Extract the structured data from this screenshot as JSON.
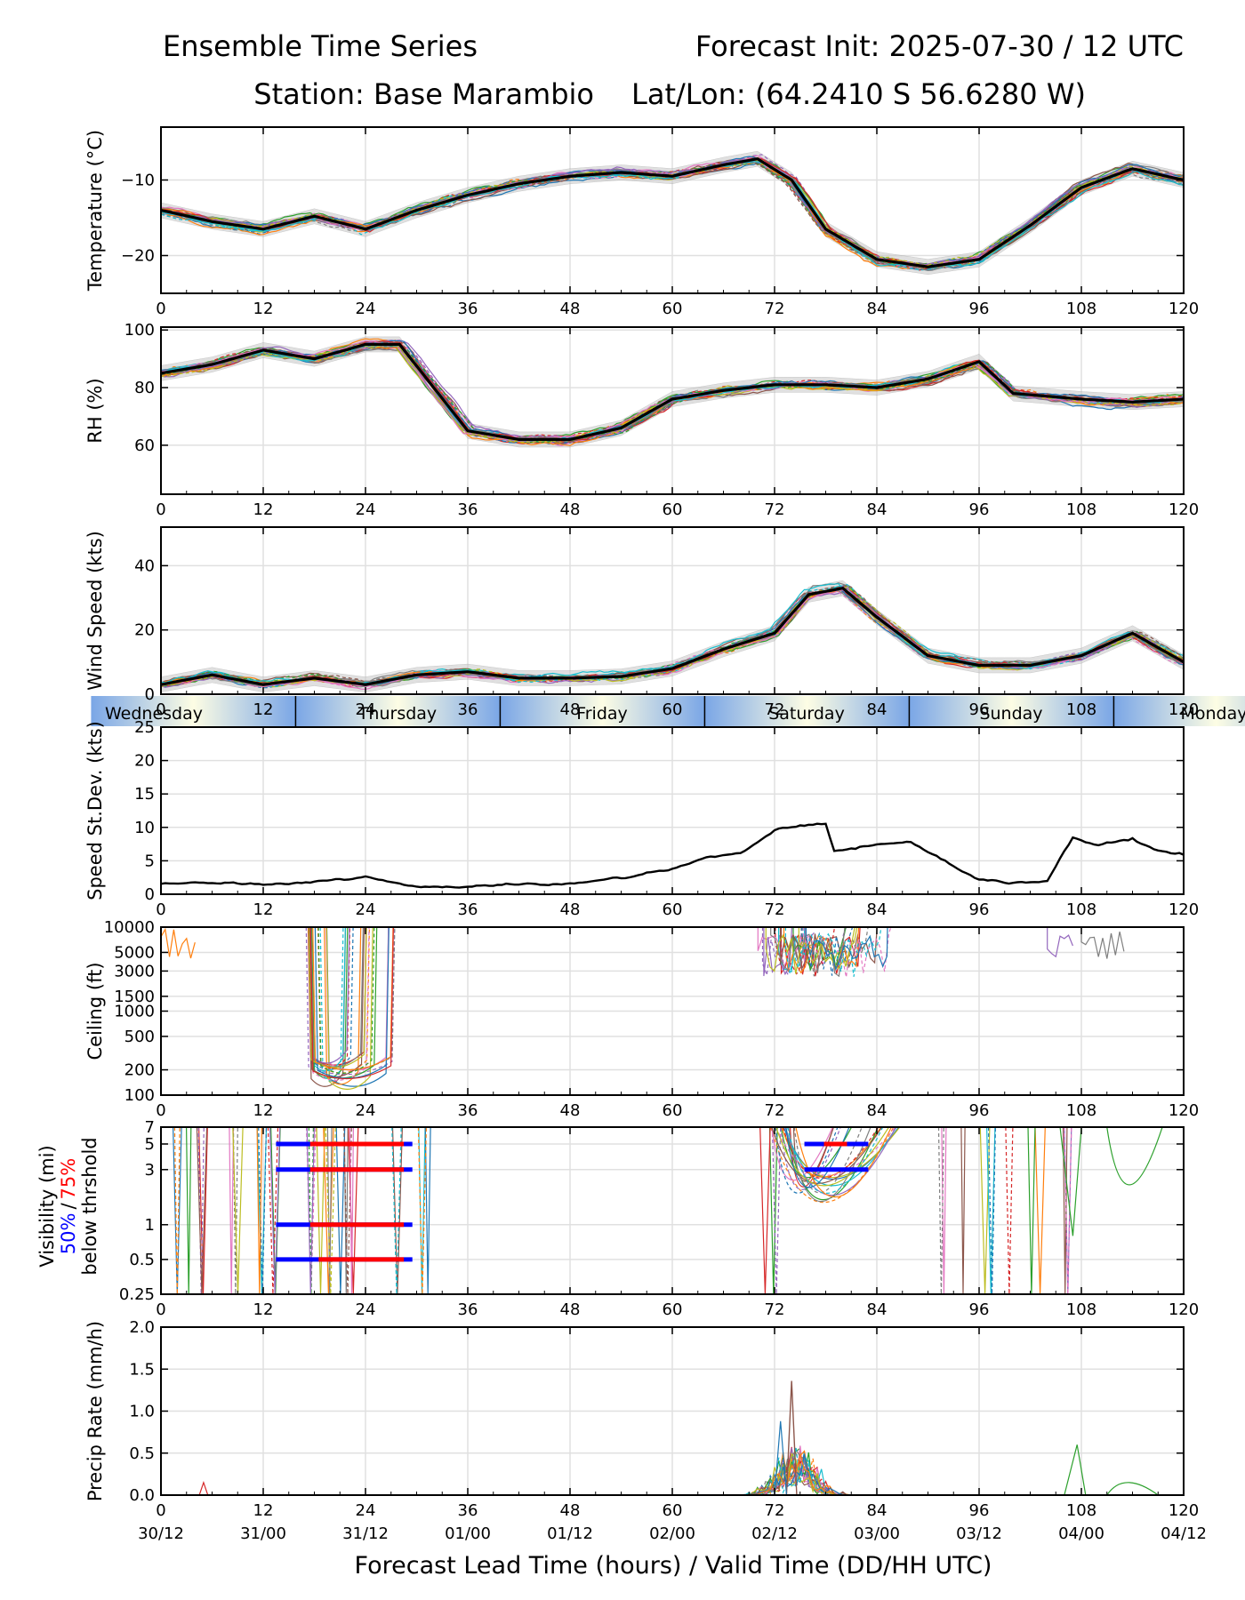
{
  "header": {
    "title_left": "Ensemble Time Series",
    "title_right": "Forecast Init: 2025-07-30 / 12 UTC",
    "station": "Station: Base Marambio",
    "latlon": "Lat/Lon: (64.2410 S 56.6280 W)"
  },
  "x_axis": {
    "ticks": [
      0,
      12,
      24,
      36,
      48,
      60,
      72,
      84,
      96,
      108,
      120
    ],
    "tick_labels": [
      "0",
      "12",
      "24",
      "36",
      "48",
      "60",
      "72",
      "84",
      "96",
      "108",
      "120"
    ],
    "valid_labels": [
      "30/12",
      "31/00",
      "31/12",
      "01/00",
      "01/12",
      "02/00",
      "02/12",
      "03/00",
      "03/12",
      "04/00",
      "04/12"
    ],
    "label": "Forecast Lead Time (hours) / Valid Time (DD/HH UTC)"
  },
  "day_band": {
    "days": [
      "Wednesday",
      "Thursday",
      "Friday",
      "Saturday",
      "Sunday",
      "Monday"
    ],
    "boundaries": [
      15.8,
      39.8,
      63.8,
      87.8,
      111.8
    ]
  },
  "colors": {
    "member_palette": [
      "#1f77b4",
      "#ff7f0e",
      "#2ca02c",
      "#d62728",
      "#9467bd",
      "#8c564b",
      "#e377c2",
      "#7f7f7f",
      "#bcbd22",
      "#17becf"
    ],
    "mean": "#000000",
    "spread_fill": "#c8c8c8",
    "vis_50": "#0000ff",
    "vis_75": "#ff0000",
    "band_blue": "#7aa6e6",
    "band_cream": "#fdfde4"
  },
  "chart_data": [
    {
      "type": "line",
      "name": "temperature",
      "ylabel": "Temperature (°C)",
      "ylim": [
        -25,
        -3
      ],
      "yticks": [
        -20,
        -10
      ],
      "ytick_labels": [
        "−20",
        "−10"
      ],
      "grid": true,
      "x": [
        0,
        6,
        12,
        18,
        24,
        30,
        36,
        42,
        48,
        54,
        60,
        66,
        70,
        74,
        78,
        84,
        90,
        96,
        102,
        108,
        114,
        120
      ],
      "mean": [
        -14,
        -15.5,
        -16.5,
        -14.8,
        -16.5,
        -14,
        -12,
        -10.5,
        -9.5,
        -9,
        -9.5,
        -8,
        -7.2,
        -10,
        -16.5,
        -20.5,
        -21.5,
        -20.5,
        -16,
        -11,
        -8.5,
        -10
      ]
    },
    {
      "type": "line",
      "name": "relative_humidity",
      "ylabel": "RH (%)",
      "ylim": [
        43,
        101
      ],
      "yticks": [
        60,
        80,
        100
      ],
      "ytick_labels": [
        "60",
        "80",
        "100"
      ],
      "grid": true,
      "x": [
        0,
        6,
        12,
        18,
        24,
        28,
        32,
        36,
        42,
        48,
        54,
        60,
        66,
        72,
        78,
        84,
        90,
        96,
        100,
        108,
        114,
        120
      ],
      "mean": [
        85,
        88,
        93,
        90,
        95,
        95,
        80,
        65,
        62,
        62,
        66,
        76,
        79,
        81,
        81,
        80,
        83,
        89,
        78,
        76,
        75,
        76
      ]
    },
    {
      "type": "line",
      "name": "wind_speed",
      "ylabel": "Wind Speed (kts)",
      "ylim": [
        0,
        52
      ],
      "yticks": [
        0,
        20,
        40
      ],
      "ytick_labels": [
        "0",
        "20",
        "40"
      ],
      "grid": true,
      "x": [
        0,
        6,
        12,
        18,
        24,
        30,
        36,
        42,
        48,
        54,
        60,
        66,
        72,
        76,
        80,
        84,
        90,
        96,
        102,
        108,
        114,
        120
      ],
      "mean": [
        3,
        6,
        3,
        5,
        3,
        6,
        7,
        5,
        5,
        5.5,
        8,
        14,
        19,
        31,
        33,
        24,
        12,
        9,
        9,
        12,
        19,
        10
      ]
    },
    {
      "type": "line",
      "name": "speed_stdev",
      "ylabel": "Speed St.Dev. (kts)",
      "ylim": [
        0,
        25
      ],
      "yticks": [
        0,
        5,
        10,
        15,
        20,
        25
      ],
      "ytick_labels": [
        "0",
        "5",
        "10",
        "15",
        "20",
        "25"
      ],
      "grid": true,
      "x": [
        0,
        6,
        12,
        18,
        24,
        30,
        36,
        42,
        48,
        54,
        60,
        64,
        68,
        72,
        76,
        78,
        79,
        84,
        88,
        92,
        96,
        100,
        104,
        107,
        110,
        114,
        117,
        120
      ],
      "values": [
        1.5,
        1.8,
        1.5,
        1.8,
        2.5,
        1.2,
        1.2,
        1.5,
        1.5,
        2.3,
        3.8,
        5.5,
        6.2,
        9.5,
        10.5,
        10.5,
        6.5,
        7.5,
        7.8,
        5,
        2.2,
        1.8,
        2,
        8.3,
        7.3,
        8.3,
        6.5,
        6
      ]
    },
    {
      "type": "line",
      "name": "ceiling",
      "ylabel": "Ceiling (ft)",
      "yscale": "log",
      "ylim": [
        100,
        10000
      ],
      "yticks": [
        100,
        200,
        500,
        1000,
        1500,
        3000,
        5000,
        10000
      ],
      "ytick_labels": [
        "100",
        "200",
        "500",
        "1000",
        "1500",
        "3000",
        "5000",
        "10000"
      ],
      "grid": true,
      "low_ceiling_hours": [
        17,
        27
      ],
      "min_ceiling_ft": 110
    },
    {
      "type": "line",
      "name": "visibility",
      "ylabel": "Visibility (mi)",
      "legend_50": "50%",
      "legend_sep": "/",
      "legend_75": "75%",
      "legend_rest": "below thrshold",
      "yscale": "log",
      "ylim": [
        0.25,
        7
      ],
      "yticks": [
        0.25,
        0.5,
        1,
        3,
        5,
        7
      ],
      "ytick_labels": [
        "0.25",
        "0.5",
        "1",
        "3",
        "5",
        "7"
      ],
      "grid": true,
      "threshold_bars": [
        {
          "level": 5,
          "start": 13.5,
          "end": 29.5,
          "p75_start": 17.5,
          "p75_end": 28.5
        },
        {
          "level": 3,
          "start": 13.5,
          "end": 29.5,
          "p75_start": 17.5,
          "p75_end": 28.5
        },
        {
          "level": 1,
          "start": 13.5,
          "end": 29.5,
          "p75_start": 17.5,
          "p75_end": 28.5
        },
        {
          "level": 0.5,
          "start": 13.5,
          "end": 29.5,
          "p75_start": 18.5,
          "p75_end": 28.5
        },
        {
          "level": 5,
          "start": 75.5,
          "end": 83,
          "p75_start": 77.8,
          "p75_end": 80.5
        },
        {
          "level": 3,
          "start": 75.5,
          "end": 83,
          "p75_start": null,
          "p75_end": null
        }
      ]
    },
    {
      "type": "line",
      "name": "precip_rate",
      "ylabel": "Precip Rate (mm/h)",
      "ylim": [
        0,
        2.0
      ],
      "yticks": [
        0,
        0.5,
        1.0,
        1.5,
        2.0
      ],
      "ytick_labels": [
        "0.0",
        "0.5",
        "1.0",
        "1.5",
        "2.0"
      ],
      "grid": true,
      "peak": {
        "x": 74,
        "value": 1.36
      }
    }
  ]
}
